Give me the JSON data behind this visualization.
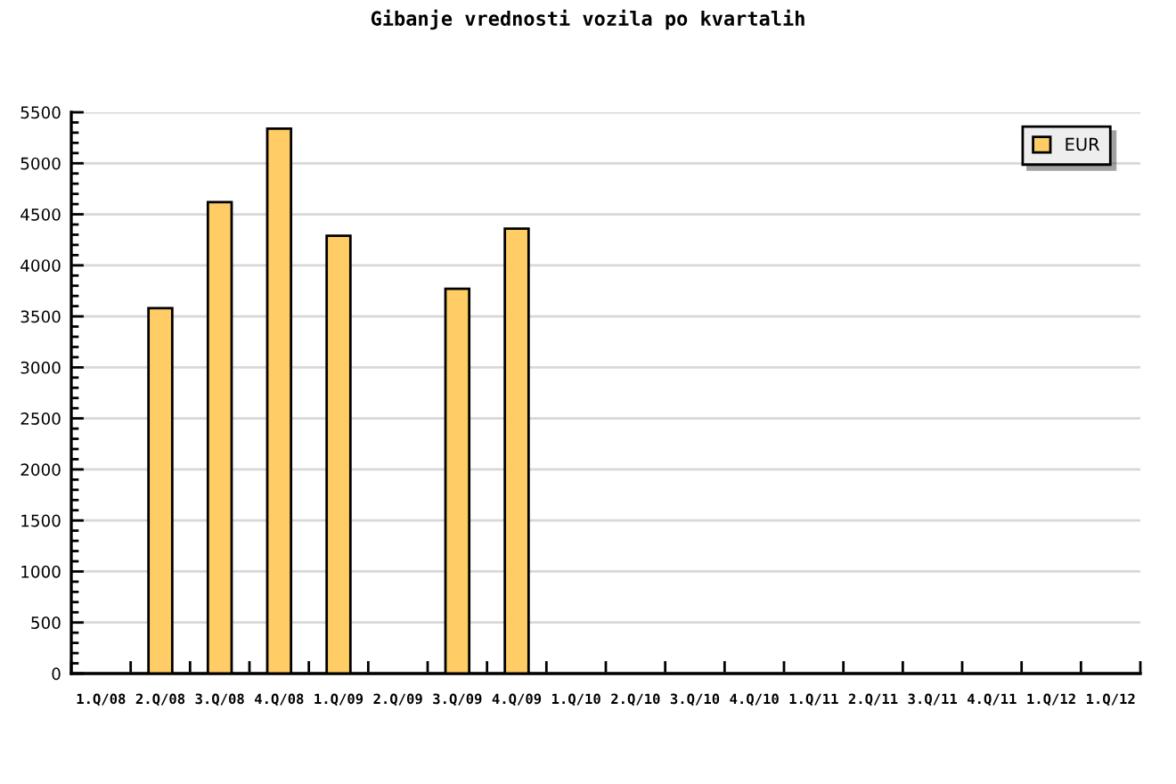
{
  "chart_data": {
    "type": "bar",
    "title": "Gibanje vrednosti vozila po kvartalih",
    "categories": [
      "1.Q/08",
      "2.Q/08",
      "3.Q/08",
      "4.Q/08",
      "1.Q/09",
      "2.Q/09",
      "3.Q/09",
      "4.Q/09",
      "1.Q/10",
      "2.Q/10",
      "3.Q/10",
      "4.Q/10",
      "1.Q/11",
      "2.Q/11",
      "3.Q/11",
      "4.Q/11",
      "1.Q/12",
      "1.Q/12"
    ],
    "series": [
      {
        "name": "EUR",
        "color": "#ffcc66",
        "values": [
          null,
          3580,
          4620,
          5340,
          4290,
          null,
          3770,
          4360,
          null,
          null,
          null,
          null,
          null,
          null,
          null,
          null,
          null,
          null
        ]
      }
    ],
    "ylim": [
      0,
      5500
    ],
    "yticks": [
      0,
      500,
      1000,
      1500,
      2000,
      2500,
      3000,
      3500,
      4000,
      4500,
      5000,
      5500
    ],
    "grid": "y",
    "legend": "top right"
  }
}
